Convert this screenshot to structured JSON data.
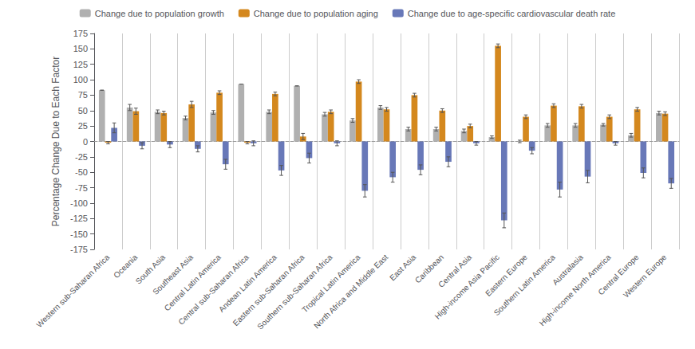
{
  "chart_data": {
    "type": "bar",
    "categories": [
      "Western sub-Saharan Africa",
      "Oceania",
      "South Asia",
      "Southeast Asia",
      "Central Latin America",
      "Central sub-Saharan Africa",
      "Andean Latin America",
      "Eastern sub-Saharan Africa",
      "Southern sub-Saharan Africa",
      "Tropical Latin America",
      "North Africa and Middle East",
      "East Asia",
      "Caribbean",
      "Central Asia",
      "High-income Asia Pacific",
      "Eastern Europe",
      "Southern Latin America",
      "Australasia",
      "High-income North America",
      "Central Europe",
      "Western Europe"
    ],
    "series": [
      {
        "name": "Change due to population growth",
        "color": "#b0b0b0",
        "values": [
          83,
          55,
          48,
          38,
          47,
          93,
          48,
          90,
          44,
          34,
          55,
          20,
          20,
          17,
          7,
          0,
          26,
          26,
          27,
          10,
          46
        ],
        "error_lo": [
          0,
          5,
          3,
          3,
          3,
          0,
          3,
          0,
          3,
          3,
          3,
          3,
          3,
          3,
          2,
          2,
          3,
          3,
          2,
          3,
          3
        ],
        "error_hi": [
          0,
          5,
          3,
          3,
          3,
          0,
          3,
          0,
          3,
          3,
          3,
          3,
          3,
          3,
          2,
          2,
          3,
          3,
          2,
          3,
          3
        ]
      },
      {
        "name": "Change due to population aging",
        "color": "#d4881e",
        "values": [
          -2,
          49,
          46,
          60,
          79,
          -2,
          77,
          8,
          48,
          97,
          52,
          75,
          50,
          25,
          155,
          40,
          58,
          57,
          40,
          52,
          45
        ],
        "error_lo": [
          2,
          5,
          3,
          5,
          3,
          2,
          3,
          5,
          3,
          3,
          3,
          3,
          3,
          3,
          3,
          3,
          3,
          3,
          3,
          3,
          3
        ],
        "error_hi": [
          2,
          5,
          3,
          5,
          3,
          2,
          3,
          5,
          3,
          3,
          3,
          3,
          3,
          3,
          3,
          3,
          3,
          3,
          3,
          3,
          3
        ]
      },
      {
        "name": "Change due to age-specific cardiovascular death rate",
        "color": "#6878b8",
        "values": [
          22,
          -7,
          -5,
          -12,
          -37,
          -3,
          -47,
          -27,
          -3,
          -80,
          -58,
          -46,
          -33,
          -3,
          -128,
          -15,
          -78,
          -57,
          -3,
          -51,
          -68
        ],
        "error_lo": [
          8,
          5,
          5,
          5,
          8,
          4,
          8,
          8,
          4,
          10,
          8,
          8,
          8,
          3,
          12,
          5,
          12,
          10,
          3,
          8,
          8
        ],
        "error_hi": [
          8,
          5,
          5,
          5,
          8,
          4,
          8,
          8,
          4,
          10,
          8,
          8,
          8,
          3,
          12,
          5,
          12,
          10,
          3,
          8,
          8
        ]
      }
    ],
    "ylabel": "Percentage Change Due to Each Factor",
    "ylim": [
      -175,
      175
    ],
    "yticks": [
      -175,
      -150,
      -125,
      -100,
      -75,
      -50,
      -25,
      0,
      25,
      50,
      75,
      100,
      125,
      150,
      175
    ],
    "grid": false,
    "legend": "top"
  }
}
